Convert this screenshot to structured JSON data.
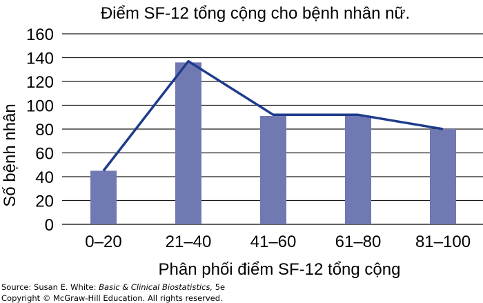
{
  "chart_data": {
    "type": "bar",
    "title": "Điểm SF-12 tổng cộng cho bệnh nhân nữ.",
    "xlabel": "Phân phối điểm SF-12 tổng cộng",
    "ylabel": "Số bệnh nhân",
    "categories": [
      "0–20",
      "21–40",
      "41–60",
      "61–80",
      "81–100"
    ],
    "series": [
      {
        "type": "bar",
        "values": [
          45,
          136,
          91,
          91,
          80
        ],
        "color": "#7079b2"
      },
      {
        "type": "line",
        "values": [
          45,
          137,
          92,
          92,
          80
        ],
        "color": "#1e3c8c"
      }
    ],
    "ylim": [
      0,
      160
    ],
    "yticks": [
      0,
      20,
      40,
      60,
      80,
      100,
      120,
      140,
      160
    ],
    "grid": "horizontal",
    "legend": "none"
  },
  "source": {
    "prefix": "Source: Susan E. White: ",
    "book": "Basic & Clinical Biostatistics,",
    "suffix": " 5e",
    "copyright": "Copyright © McGraw-Hill Education. All rights reserved."
  }
}
